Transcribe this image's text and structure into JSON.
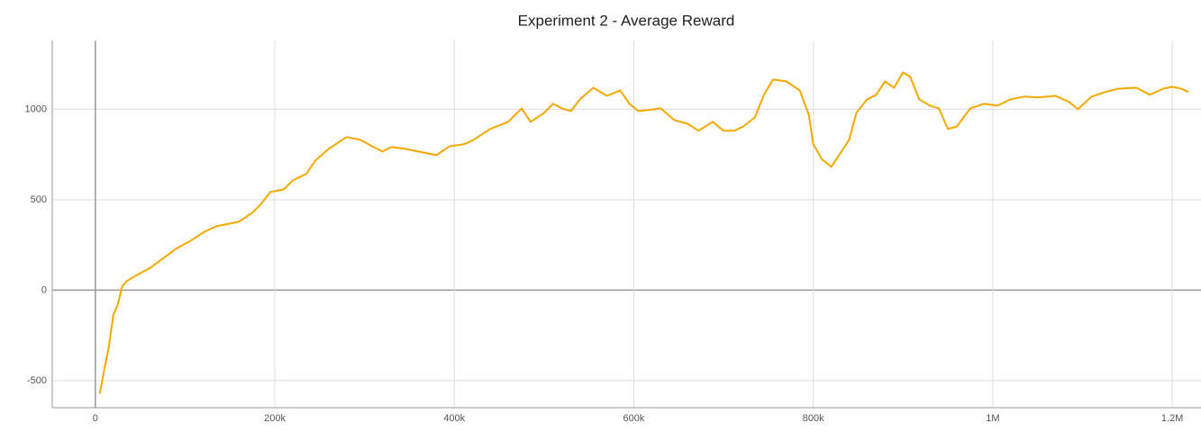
{
  "chart_data": {
    "type": "line",
    "title": "Experiment 2 - Average Reward",
    "x": [
      5000,
      10000,
      15000,
      20000,
      25000,
      30000,
      35000,
      45000,
      60000,
      75000,
      90000,
      105000,
      120000,
      135000,
      150000,
      160000,
      175000,
      185000,
      195000,
      210000,
      220000,
      235000,
      245000,
      260000,
      280000,
      295000,
      310000,
      320000,
      330000,
      345000,
      360000,
      380000,
      395000,
      410000,
      420000,
      440000,
      460000,
      475000,
      485000,
      500000,
      510000,
      520000,
      530000,
      540000,
      555000,
      570000,
      585000,
      595000,
      605000,
      615000,
      630000,
      645000,
      660000,
      672000,
      688000,
      700000,
      712000,
      722000,
      735000,
      745000,
      755000,
      770000,
      785000,
      795000,
      800000,
      810000,
      820000,
      830000,
      840000,
      848000,
      860000,
      870000,
      880000,
      890000,
      900000,
      908000,
      918000,
      930000,
      940000,
      950000,
      960000,
      975000,
      990000,
      1005000,
      1020000,
      1035000,
      1050000,
      1070000,
      1085000,
      1095000,
      1110000,
      1125000,
      1140000,
      1160000,
      1175000,
      1190000,
      1200000,
      1210000,
      1218000
    ],
    "series": [
      {
        "name": "Average Reward",
        "color": "#f5a800",
        "values": [
          -572,
          -438,
          -313,
          -139,
          -80,
          20,
          50,
          80,
          119,
          174,
          229,
          269,
          318,
          353,
          368,
          378,
          428,
          478,
          542,
          557,
          607,
          642,
          716,
          781,
          846,
          831,
          791,
          766,
          791,
          781,
          766,
          746,
          796,
          806,
          826,
          891,
          930,
          1005,
          930,
          980,
          1030,
          1005,
          990,
          1055,
          1119,
          1074,
          1104,
          1030,
          990,
          995,
          1005,
          940,
          920,
          881,
          930,
          881,
          881,
          905,
          955,
          1080,
          1164,
          1154,
          1104,
          970,
          806,
          721,
          682,
          756,
          831,
          980,
          1055,
          1080,
          1154,
          1119,
          1204,
          1179,
          1055,
          1020,
          1005,
          891,
          905,
          1005,
          1030,
          1020,
          1055,
          1070,
          1065,
          1074,
          1040,
          1000,
          1070,
          1095,
          1114,
          1119,
          1080,
          1114,
          1124,
          1114,
          1095
        ]
      }
    ],
    "xlim": [
      -48000,
      1232000
    ],
    "xticks": [
      0,
      {
        "value": 200000,
        "label": "200k"
      },
      {
        "value": 400000,
        "label": "400k"
      },
      {
        "value": 600000,
        "label": "600k"
      },
      {
        "value": 800000,
        "label": "800k"
      },
      {
        "value": 1000000,
        "label": "1M"
      },
      {
        "value": 1200000,
        "label": "1.2M"
      }
    ],
    "ylim": [
      -650,
      1380
    ],
    "yticks": [
      -500,
      0,
      500,
      1000
    ],
    "grid": true
  }
}
